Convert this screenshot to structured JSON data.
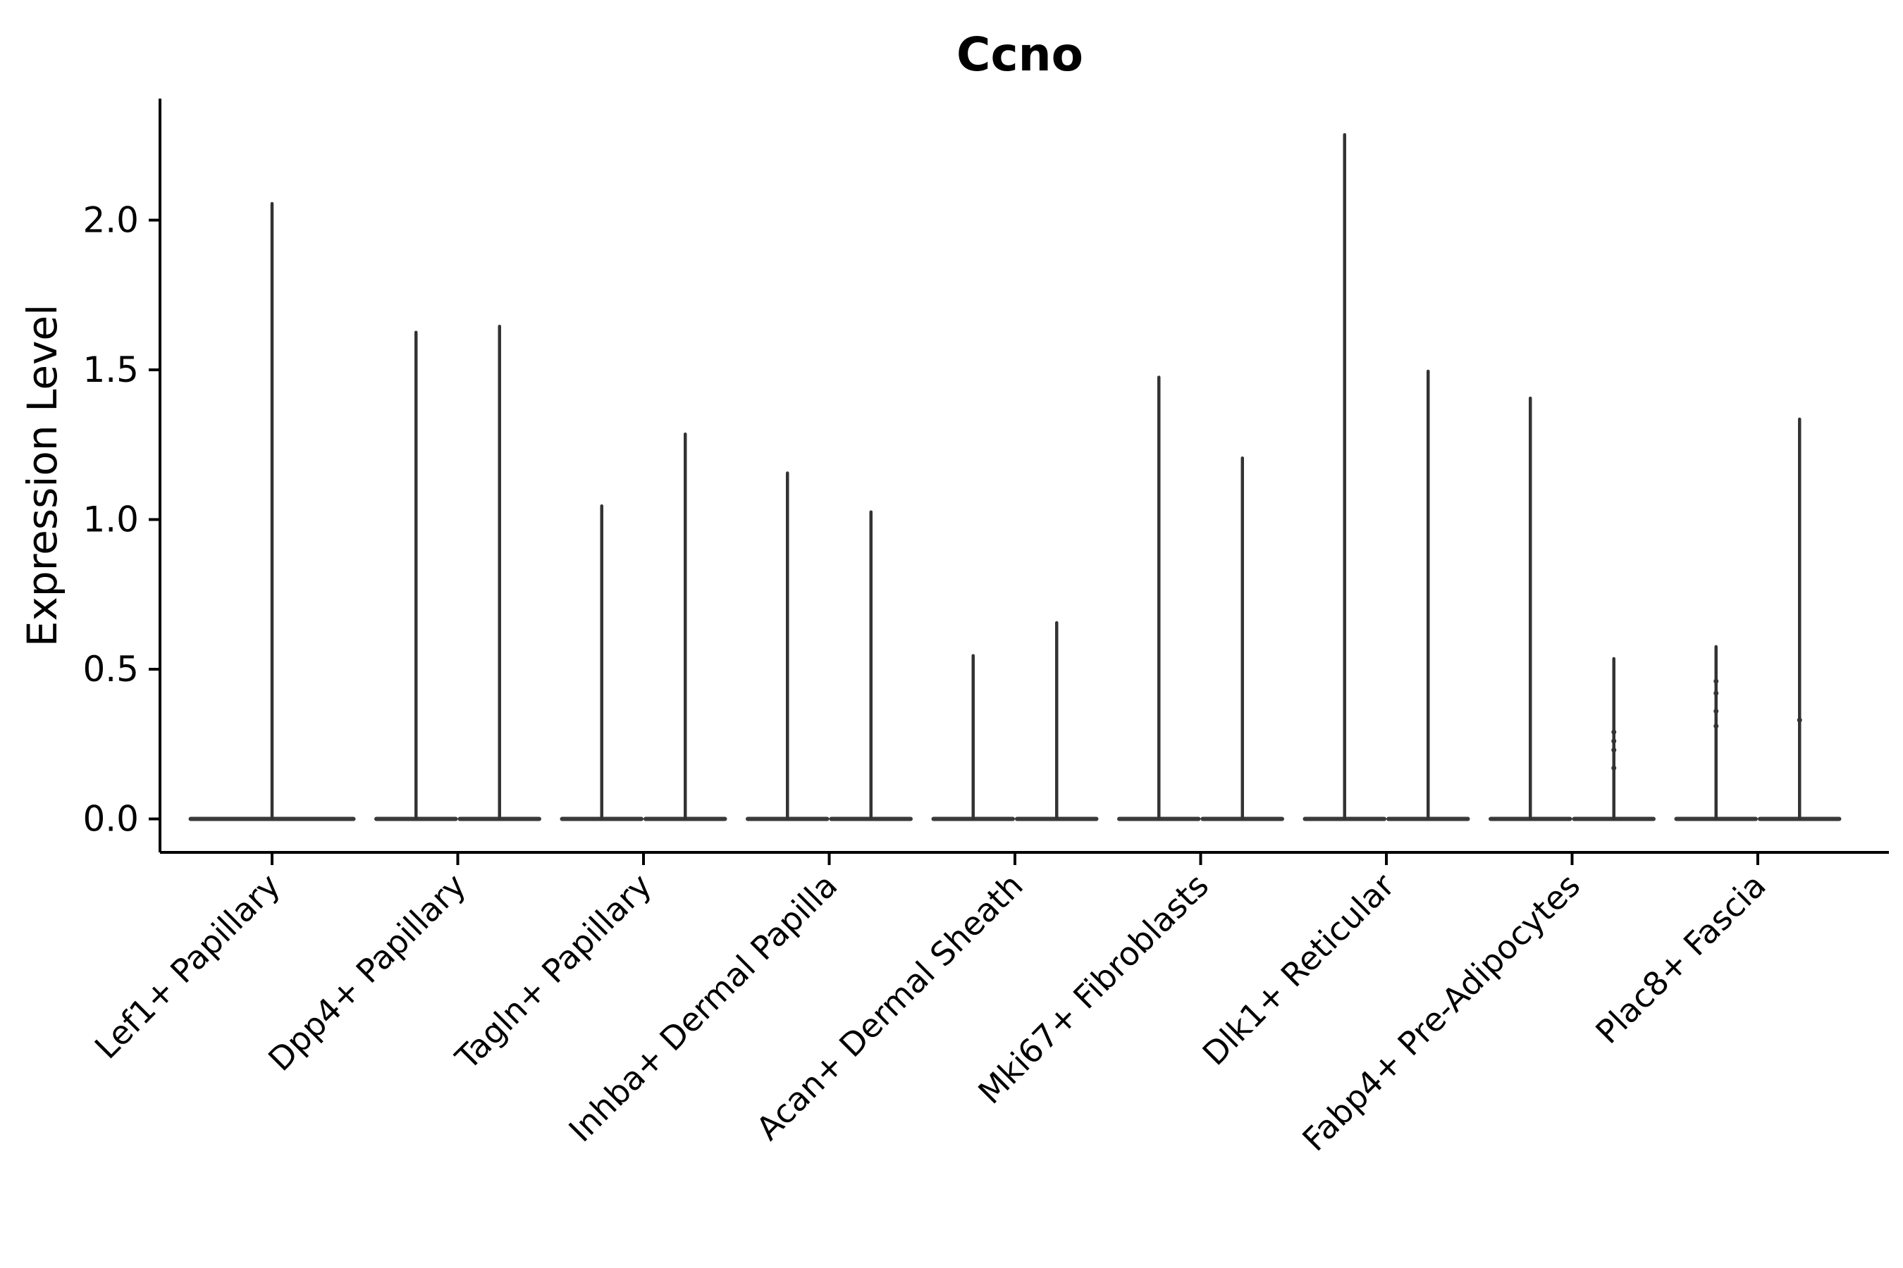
{
  "chart_data": {
    "type": "violin",
    "title": "Ccno",
    "ylabel": "Expression Level",
    "xlabel": "",
    "ylim": [
      -0.11,
      2.41
    ],
    "yticks": [
      0.0,
      0.5,
      1.0,
      1.5,
      2.0
    ],
    "ytick_labels": [
      "0.0",
      "0.5",
      "1.0",
      "1.5",
      "2.0"
    ],
    "grid": false,
    "legend": null,
    "categories": [
      "Lef1+ Papillary",
      "Dpp4+ Papillary",
      "Tagln+ Papillary",
      "Inhba+ Dermal Papilla",
      "Acan+ Dermal Sheath",
      "Mki67+ Fibroblasts",
      "Dlk1+ Reticular",
      "Fabp4+ Pre-Adipocytes",
      "Plac8+ Fascia"
    ],
    "groups": [
      {
        "label": "Lef1+ Papillary",
        "violin_max": [
          2.06
        ],
        "points": [
          []
        ]
      },
      {
        "label": "Dpp4+ Papillary",
        "violin_max": [
          1.63,
          1.65
        ],
        "points": [
          [],
          []
        ]
      },
      {
        "label": "Tagln+ Papillary",
        "violin_max": [
          1.05,
          1.29
        ],
        "points": [
          [],
          []
        ]
      },
      {
        "label": "Inhba+ Dermal Papilla",
        "violin_max": [
          1.16,
          1.03
        ],
        "points": [
          [],
          []
        ]
      },
      {
        "label": "Acan+ Dermal Sheath",
        "violin_max": [
          0.55,
          0.66
        ],
        "points": [
          [],
          []
        ]
      },
      {
        "label": "Mki67+ Fibroblasts",
        "violin_max": [
          1.48,
          1.21
        ],
        "points": [
          [],
          []
        ]
      },
      {
        "label": "Dlk1+ Reticular",
        "violin_max": [
          2.29,
          1.5
        ],
        "points": [
          [],
          []
        ]
      },
      {
        "label": "Fabp4+ Pre-Adipocytes",
        "violin_max": [
          1.41,
          0.54
        ],
        "points": [
          [],
          [
            0.29,
            0.26,
            0.23,
            0.17
          ]
        ]
      },
      {
        "label": "Plac8+ Fascia",
        "violin_max": [
          0.58,
          1.34
        ],
        "points": [
          [
            0.46,
            0.42,
            0.36,
            0.31
          ],
          [
            0.33
          ]
        ]
      }
    ],
    "colors": {
      "violin": "#333333",
      "violin_base": "#3a3a3a",
      "axis": "#000000",
      "text": "#000000",
      "background": "#ffffff"
    }
  }
}
